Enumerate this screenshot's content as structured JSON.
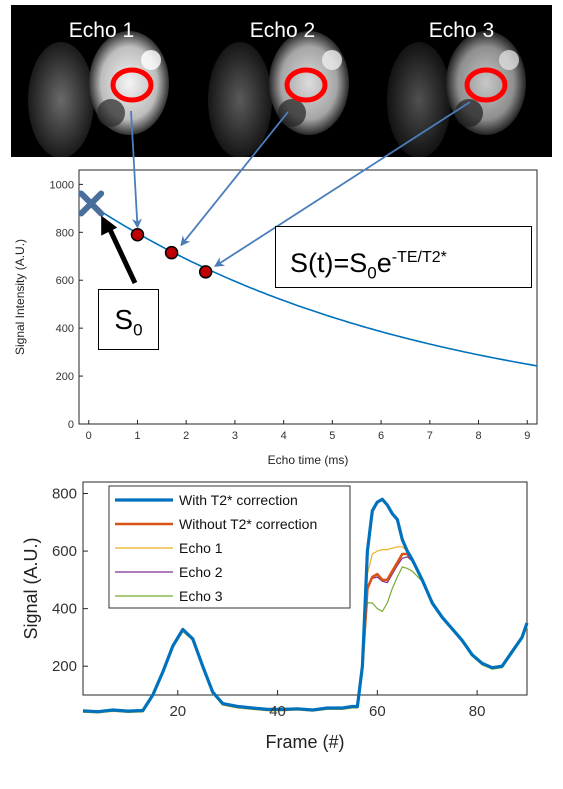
{
  "panels": [
    {
      "label": "Echo 1"
    },
    {
      "label": "Echo 2"
    },
    {
      "label": "Echo 3"
    }
  ],
  "formula": {
    "main": "S(t)=S",
    "sub": "0",
    "mid": "e",
    "sup": "-TE/T2*"
  },
  "s0_label": {
    "main": "S",
    "sub": "0"
  },
  "colors": {
    "axes": "#262626",
    "decay": "#0072BD",
    "point_fill": "#C00000",
    "arrow": "#4A7EBB",
    "cross": "#4A6E9B",
    "roi": "#FF0000",
    "with": "#0072BD",
    "without": "#D95319",
    "echo1": "#EDB120",
    "echo2": "#7E2F8E",
    "echo3": "#77AC30"
  },
  "chart_data": [
    {
      "type": "line",
      "xlabel": "Echo time (ms)",
      "ylabel": "Signal Intensity (A.U.)",
      "xlim": [
        -0.2,
        9.2
      ],
      "ylim": [
        0,
        1060
      ],
      "xticks": [
        0,
        1,
        2,
        3,
        4,
        5,
        6,
        7,
        8,
        9
      ],
      "yticks": [
        0,
        200,
        400,
        600,
        800,
        1000
      ],
      "s0": 920,
      "t2star_ms": 6.9,
      "points": [
        {
          "x": 1.0,
          "y": 790
        },
        {
          "x": 1.7,
          "y": 715
        },
        {
          "x": 2.4,
          "y": 635
        }
      ],
      "s0_point": {
        "x": 0.05,
        "y": 920
      }
    },
    {
      "type": "line",
      "xlabel": "Frame (#)",
      "ylabel": "Signal (A.U.)",
      "xlim": [
        1,
        90
      ],
      "ylim": [
        100,
        840
      ],
      "xticks": [
        20,
        40,
        60,
        80
      ],
      "yticks": [
        200,
        400,
        600,
        800
      ],
      "legend_position": "top-left",
      "x": [
        1,
        4,
        7,
        10,
        13,
        15,
        17,
        19,
        21,
        23,
        25,
        27,
        29,
        32,
        35,
        38,
        41,
        44,
        47,
        50,
        53,
        55,
        56,
        57,
        58,
        59,
        60,
        61,
        62,
        63,
        64,
        65,
        66,
        67,
        69,
        71,
        73,
        75,
        77,
        79,
        81,
        83,
        85,
        87,
        89,
        90
      ],
      "series": [
        {
          "name": "With T2* correction",
          "values": [
            45,
            42,
            48,
            44,
            46,
            100,
            180,
            270,
            328,
            295,
            200,
            110,
            70,
            60,
            55,
            50,
            50,
            52,
            48,
            55,
            55,
            60,
            60,
            200,
            600,
            740,
            770,
            780,
            760,
            730,
            710,
            640,
            600,
            570,
            500,
            420,
            370,
            330,
            290,
            240,
            210,
            195,
            200,
            250,
            300,
            350
          ]
        },
        {
          "name": "Without T2* correction",
          "values": [
            45,
            42,
            48,
            44,
            46,
            100,
            180,
            270,
            328,
            295,
            200,
            110,
            70,
            60,
            55,
            50,
            50,
            52,
            48,
            55,
            55,
            60,
            60,
            200,
            470,
            510,
            520,
            500,
            500,
            530,
            560,
            590,
            590,
            570,
            500,
            420,
            370,
            330,
            290,
            240,
            210,
            195,
            200,
            250,
            300,
            350
          ]
        },
        {
          "name": "Echo 1",
          "values": [
            40,
            38,
            43,
            40,
            41,
            95,
            175,
            265,
            320,
            290,
            195,
            105,
            65,
            55,
            50,
            45,
            45,
            48,
            44,
            50,
            50,
            55,
            55,
            200,
            520,
            590,
            600,
            605,
            605,
            610,
            615,
            615,
            600,
            570,
            500,
            420,
            370,
            330,
            290,
            235,
            205,
            190,
            195,
            245,
            295,
            335
          ]
        },
        {
          "name": "Echo 2",
          "values": [
            42,
            40,
            46,
            42,
            43,
            98,
            178,
            268,
            325,
            293,
            198,
            108,
            68,
            58,
            53,
            48,
            48,
            50,
            46,
            52,
            52,
            58,
            58,
            200,
            480,
            505,
            510,
            495,
            490,
            520,
            550,
            575,
            580,
            565,
            498,
            418,
            368,
            328,
            288,
            238,
            208,
            193,
            198,
            248,
            298,
            345
          ]
        },
        {
          "name": "Echo 3",
          "values": [
            40,
            38,
            44,
            40,
            42,
            95,
            175,
            266,
            322,
            290,
            196,
            106,
            66,
            56,
            51,
            46,
            46,
            49,
            45,
            51,
            51,
            56,
            56,
            190,
            420,
            420,
            400,
            390,
            420,
            470,
            510,
            545,
            540,
            530,
            495,
            415,
            365,
            325,
            285,
            235,
            205,
            190,
            195,
            245,
            295,
            340
          ]
        }
      ]
    }
  ]
}
